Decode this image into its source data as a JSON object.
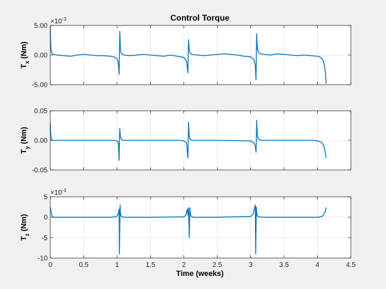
{
  "chart_data": [
    {
      "type": "line",
      "title": "Control Torque",
      "ylabel_main": "T",
      "ylabel_sub": "x",
      "ylabel_unit": "(Nm)",
      "exponent_label": "×10",
      "exponent_power": "-3",
      "xlim": [
        0,
        4.5
      ],
      "ylim": [
        -5,
        5
      ],
      "yticks": [
        -5,
        0,
        5
      ],
      "ytick_labels": [
        "-5.00",
        "0.00",
        "5.00"
      ],
      "grid": true,
      "color": "#0072BD",
      "series": [
        {
          "x": [
            0.0,
            0.005,
            0.01,
            0.02,
            0.03,
            0.05,
            0.1,
            0.2,
            0.3,
            0.4,
            0.5,
            0.6,
            0.7,
            0.8,
            0.9,
            0.95,
            1.0,
            1.02,
            1.03,
            1.035,
            1.04,
            1.05,
            1.06,
            1.08,
            1.1,
            1.2,
            1.3,
            1.4,
            1.5,
            1.6,
            1.7,
            1.8,
            1.9,
            2.0,
            2.04,
            2.06,
            2.065,
            2.07,
            2.08,
            2.09,
            2.12,
            2.2,
            2.3,
            2.4,
            2.5,
            2.6,
            2.7,
            2.8,
            2.9,
            3.0,
            3.05,
            3.07,
            3.08,
            3.085,
            3.09,
            3.1,
            3.12,
            3.15,
            3.2,
            3.3,
            3.4,
            3.5,
            3.6,
            3.7,
            3.8,
            3.9,
            4.0,
            4.05,
            4.08,
            4.1,
            4.12,
            4.13
          ],
          "y": [
            4.8,
            2.5,
            1.0,
            0.4,
            0.2,
            0.1,
            0.0,
            -0.1,
            -0.2,
            0.0,
            0.1,
            0.0,
            -0.1,
            -0.1,
            -0.2,
            -0.3,
            -0.6,
            -1.5,
            -3.3,
            0.0,
            4.0,
            1.0,
            0.4,
            0.1,
            0.0,
            -0.1,
            0.0,
            0.1,
            0.0,
            -0.1,
            -0.2,
            0.0,
            -0.2,
            -0.4,
            -1.0,
            -3.0,
            0.0,
            2.6,
            1.0,
            0.4,
            0.1,
            0.0,
            -0.1,
            0.0,
            0.1,
            0.2,
            0.1,
            0.0,
            -0.2,
            -0.3,
            -0.8,
            -1.8,
            -4.2,
            0.0,
            3.6,
            1.0,
            0.4,
            0.2,
            0.1,
            0.0,
            0.2,
            0.1,
            0.0,
            -0.1,
            0.0,
            -0.1,
            -0.2,
            -0.4,
            -0.8,
            -1.5,
            -3.0,
            -4.8
          ]
        }
      ]
    },
    {
      "type": "line",
      "title": "",
      "ylabel_main": "T",
      "ylabel_sub": "y",
      "ylabel_unit": "(Nm)",
      "xlim": [
        0,
        4.5
      ],
      "ylim": [
        -0.05,
        0.05
      ],
      "yticks": [
        -0.05,
        0,
        0.05
      ],
      "ytick_labels": [
        "-0.05",
        "0.00",
        "0.05"
      ],
      "grid": true,
      "color": "#0072BD",
      "series": [
        {
          "x": [
            0.0,
            0.005,
            0.01,
            0.02,
            0.04,
            0.1,
            0.5,
            0.95,
            1.0,
            1.02,
            1.03,
            1.035,
            1.04,
            1.05,
            1.07,
            1.1,
            1.5,
            1.95,
            2.0,
            2.04,
            2.06,
            2.065,
            2.07,
            2.08,
            2.1,
            2.14,
            2.5,
            3.0,
            3.05,
            3.07,
            3.08,
            3.085,
            3.09,
            3.1,
            3.12,
            3.16,
            3.5,
            3.95,
            4.0,
            4.06,
            4.09,
            4.11,
            4.12,
            4.13
          ],
          "y": [
            0.03,
            0.015,
            0.005,
            0.001,
            0.0,
            0.0,
            0.0,
            0.0,
            -0.001,
            -0.005,
            -0.034,
            0.0,
            0.02,
            0.005,
            0.001,
            0.0,
            0.0,
            0.0,
            -0.001,
            -0.004,
            -0.03,
            0.0,
            0.031,
            0.006,
            0.001,
            0.0,
            0.0,
            -0.001,
            -0.004,
            -0.01,
            -0.02,
            0.0,
            0.034,
            0.007,
            0.002,
            0.0,
            0.0,
            0.0,
            -0.001,
            -0.003,
            -0.008,
            -0.016,
            -0.024,
            -0.03
          ]
        }
      ]
    },
    {
      "type": "line",
      "title": "",
      "xlabel": "Time (weeks)",
      "ylabel_main": "T",
      "ylabel_sub": "z",
      "ylabel_unit": "(Nm)",
      "exponent_label": "×10",
      "exponent_power": "-3",
      "xlim": [
        0,
        4.5
      ],
      "ylim": [
        -10,
        5
      ],
      "yticks": [
        -10,
        -5,
        0,
        5
      ],
      "ytick_labels": [
        "-10",
        "-5",
        "0",
        "5"
      ],
      "xticks": [
        0,
        0.5,
        1,
        1.5,
        2,
        2.5,
        3,
        3.5,
        4,
        4.5
      ],
      "xtick_labels": [
        "0",
        "0.5",
        "1",
        "1.5",
        "2",
        "2.5",
        "3",
        "3.5",
        "4",
        "4.5"
      ],
      "grid": true,
      "color": "#0072BD",
      "series": [
        {
          "x": [
            0.0,
            0.01,
            0.02,
            0.04,
            0.06,
            0.1,
            0.5,
            0.9,
            0.98,
            1.0,
            1.02,
            1.03,
            1.035,
            1.045,
            1.05,
            1.06,
            1.08,
            1.1,
            1.5,
            2.0,
            2.03,
            2.05,
            2.06,
            2.07,
            2.08,
            2.09,
            2.1,
            2.12,
            2.15,
            2.5,
            3.0,
            3.04,
            3.06,
            3.07,
            3.075,
            3.085,
            3.09,
            3.1,
            3.12,
            3.2,
            3.8,
            4.0,
            4.05,
            4.08,
            4.1,
            4.12,
            4.13
          ],
          "y": [
            2.5,
            1.5,
            0.5,
            0.1,
            0.0,
            0.0,
            0.0,
            0.0,
            0.1,
            0.3,
            1.0,
            2.0,
            -9.0,
            3.0,
            1.0,
            0.3,
            0.1,
            0.0,
            0.0,
            0.1,
            0.5,
            2.0,
            0.5,
            2.3,
            -5.0,
            2.3,
            0.5,
            0.1,
            0.0,
            0.0,
            0.2,
            0.8,
            2.5,
            3.0,
            -9.0,
            2.5,
            1.0,
            0.3,
            0.1,
            0.0,
            0.0,
            0.0,
            0.1,
            0.3,
            0.8,
            1.5,
            2.4
          ]
        }
      ]
    }
  ]
}
